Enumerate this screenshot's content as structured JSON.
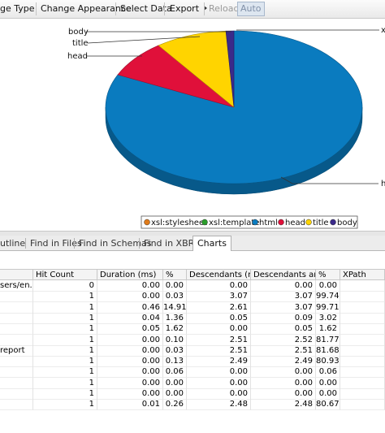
{
  "toolbar": {
    "buttons": [
      "ge Type",
      "Change Appearance",
      "Select Data",
      "Export",
      "Reload",
      "Auto"
    ]
  },
  "chart": {
    "type": "pie",
    "slices": [
      {
        "name": "xsl:stylesheet",
        "color": "#e07b1a",
        "value": 0
      },
      {
        "name": "xsl:template",
        "color": "#2a9d2a",
        "value": 0
      },
      {
        "name": "html",
        "color": "#0a7bbf",
        "value": 82
      },
      {
        "name": "head",
        "color": "#e0103a",
        "value": 8
      },
      {
        "name": "title",
        "color": "#ffd400",
        "value": 9
      },
      {
        "name": "body",
        "color": "#3b2a8a",
        "value": 1
      }
    ],
    "callouts": [
      "body",
      "title",
      "head",
      "x",
      "h"
    ]
  },
  "tabs": {
    "items": [
      "utline",
      "Find in Files",
      "Find in Schemas",
      "Find in XBRL",
      "Charts"
    ],
    "active": 4
  },
  "table": {
    "columns": [
      null,
      "Hit Count",
      "Duration (ms)",
      "%",
      "Descendants (ms)",
      "Descendants an...",
      "%",
      "XPath"
    ],
    "rows": [
      [
        "sers/en...",
        "0",
        "0.00",
        "0.00",
        "0.00",
        "0.00",
        "0.00",
        null
      ],
      [
        null,
        "1",
        "0.00",
        "0.03",
        "3.07",
        "3.07",
        "99.74",
        null
      ],
      [
        null,
        "1",
        "0.46",
        "14.91",
        "2.61",
        "3.07",
        "99.71",
        null
      ],
      [
        null,
        "1",
        "0.04",
        "1.36",
        "0.05",
        "0.09",
        "3.02",
        null
      ],
      [
        null,
        "1",
        "0.05",
        "1.62",
        "0.00",
        "0.05",
        "1.62",
        null
      ],
      [
        null,
        "1",
        "0.00",
        "0.10",
        "2.51",
        "2.52",
        "81.77",
        null
      ],
      [
        "report",
        "1",
        "0.00",
        "0.03",
        "2.51",
        "2.51",
        "81.68",
        null
      ],
      [
        null,
        "1",
        "0.00",
        "0.13",
        "2.49",
        "2.49",
        "80.93",
        null
      ],
      [
        null,
        "1",
        "0.00",
        "0.06",
        "0.00",
        "0.00",
        "0.06",
        null
      ],
      [
        null,
        "1",
        "0.00",
        "0.00",
        "0.00",
        "0.00",
        "0.00",
        null
      ],
      [
        null,
        "1",
        "0.00",
        "0.00",
        "0.00",
        "0.00",
        "0.00",
        null
      ],
      [
        null,
        "1",
        "0.01",
        "0.26",
        "2.48",
        "2.48",
        "80.67",
        null
      ]
    ]
  }
}
